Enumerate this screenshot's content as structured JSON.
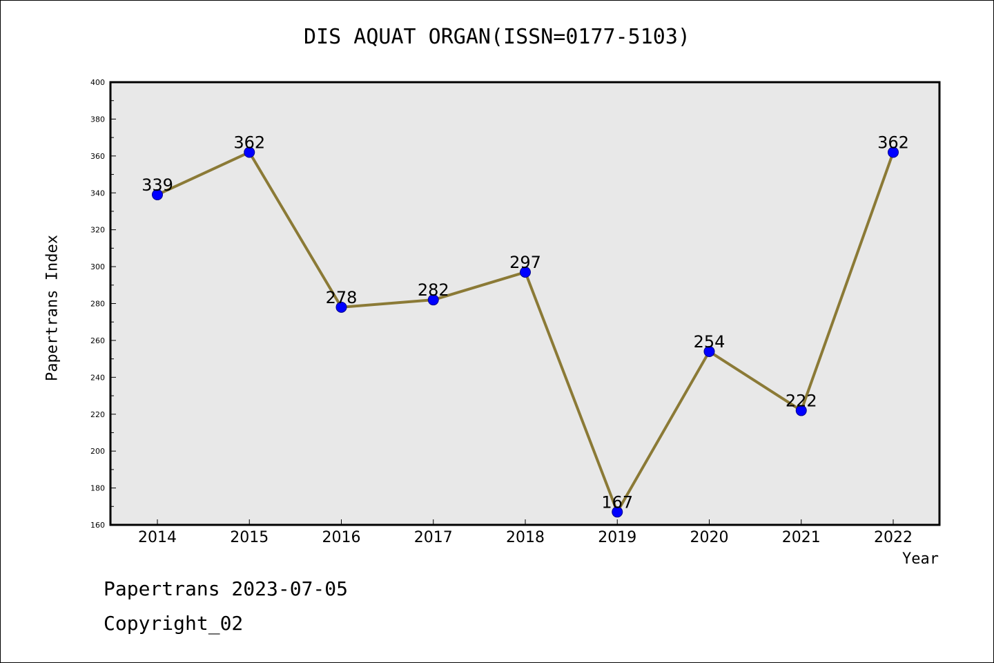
{
  "chart_data": {
    "type": "line",
    "title": "DIS AQUAT ORGAN(ISSN=0177-5103)",
    "xlabel": "Year",
    "ylabel": "Papertrans Index",
    "categories": [
      "2014",
      "2015",
      "2016",
      "2017",
      "2018",
      "2019",
      "2020",
      "2021",
      "2022"
    ],
    "series": [
      {
        "values": [
          339,
          362,
          278,
          282,
          297,
          167,
          254,
          222,
          362
        ]
      }
    ],
    "ylim": [
      160,
      400
    ],
    "yticks": [
      160,
      180,
      200,
      220,
      240,
      260,
      280,
      300,
      320,
      340,
      360,
      380,
      400
    ],
    "grid": false,
    "colors": {
      "line": "#8b7a36",
      "marker": "#0000ff",
      "plot_bg": "#e8e8e8",
      "frame": "#000000"
    }
  },
  "footer": {
    "line1": "Papertrans 2023-07-05",
    "line2": "Copyright_02"
  }
}
